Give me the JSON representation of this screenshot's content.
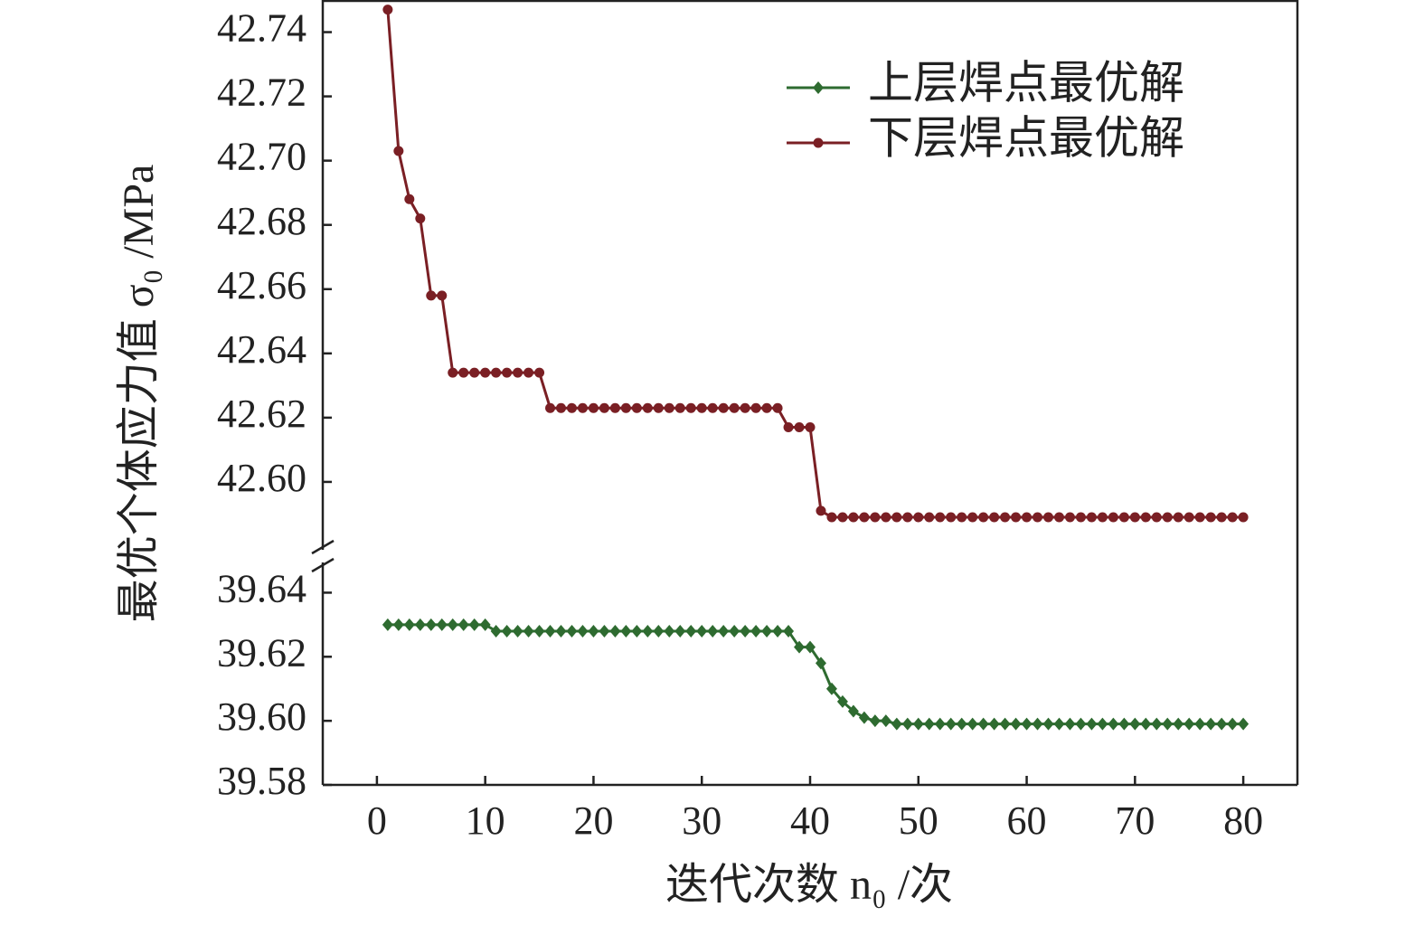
{
  "chart_data": {
    "type": "line",
    "y_label": "最优个体应力值 σ₀ /MPa",
    "x_label": "迭代次数 n₀ /次",
    "x": [
      1,
      2,
      3,
      4,
      5,
      6,
      7,
      8,
      9,
      10,
      11,
      12,
      13,
      14,
      15,
      16,
      17,
      18,
      19,
      20,
      21,
      22,
      23,
      24,
      25,
      26,
      27,
      28,
      29,
      30,
      31,
      32,
      33,
      34,
      35,
      36,
      37,
      38,
      39,
      40,
      41,
      42,
      43,
      44,
      45,
      46,
      47,
      48,
      49,
      50,
      51,
      52,
      53,
      54,
      55,
      56,
      57,
      58,
      59,
      60,
      61,
      62,
      63,
      64,
      65,
      66,
      67,
      68,
      69,
      70,
      71,
      72,
      73,
      74,
      75,
      76,
      77,
      78,
      79,
      80
    ],
    "series": [
      {
        "name": "上层焊点最优解",
        "color": "#2e6b30",
        "marker": "diamond",
        "values": [
          39.63,
          39.63,
          39.63,
          39.63,
          39.63,
          39.63,
          39.63,
          39.63,
          39.63,
          39.63,
          39.628,
          39.628,
          39.628,
          39.628,
          39.628,
          39.628,
          39.628,
          39.628,
          39.628,
          39.628,
          39.628,
          39.628,
          39.628,
          39.628,
          39.628,
          39.628,
          39.628,
          39.628,
          39.628,
          39.628,
          39.628,
          39.628,
          39.628,
          39.628,
          39.628,
          39.628,
          39.628,
          39.628,
          39.623,
          39.623,
          39.618,
          39.61,
          39.606,
          39.603,
          39.601,
          39.6,
          39.6,
          39.599,
          39.599,
          39.599,
          39.599,
          39.599,
          39.599,
          39.599,
          39.599,
          39.599,
          39.599,
          39.599,
          39.599,
          39.599,
          39.599,
          39.599,
          39.599,
          39.599,
          39.599,
          39.599,
          39.599,
          39.599,
          39.599,
          39.599,
          39.599,
          39.599,
          39.599,
          39.599,
          39.599,
          39.599,
          39.599,
          39.599,
          39.599,
          39.599
        ]
      },
      {
        "name": "下层焊点最优解",
        "color": "#7a1f24",
        "marker": "circle",
        "values": [
          42.747,
          42.703,
          42.688,
          42.682,
          42.658,
          42.658,
          42.634,
          42.634,
          42.634,
          42.634,
          42.634,
          42.634,
          42.634,
          42.634,
          42.634,
          42.623,
          42.623,
          42.623,
          42.623,
          42.623,
          42.623,
          42.623,
          42.623,
          42.623,
          42.623,
          42.623,
          42.623,
          42.623,
          42.623,
          42.623,
          42.623,
          42.623,
          42.623,
          42.623,
          42.623,
          42.623,
          42.623,
          42.617,
          42.617,
          42.617,
          42.591,
          42.589,
          42.589,
          42.589,
          42.589,
          42.589,
          42.589,
          42.589,
          42.589,
          42.589,
          42.589,
          42.589,
          42.589,
          42.589,
          42.589,
          42.589,
          42.589,
          42.589,
          42.589,
          42.589,
          42.589,
          42.589,
          42.589,
          42.589,
          42.589,
          42.589,
          42.589,
          42.589,
          42.589,
          42.589,
          42.589,
          42.589,
          42.589,
          42.589,
          42.589,
          42.589,
          42.589,
          42.589,
          42.589,
          42.589
        ]
      }
    ],
    "xlim": [
      -5,
      85
    ],
    "xticks": [
      0,
      10,
      20,
      30,
      40,
      50,
      60,
      70,
      80
    ],
    "y_break": true,
    "ylim": [
      [
        39.58,
        39.65
      ],
      [
        42.58,
        42.75
      ]
    ],
    "yticks": [
      [
        39.58,
        {
          "value": 39.6,
          "label": "39.60"
        },
        39.62,
        39.64
      ],
      [
        {
          "value": 42.6,
          "label": "42.60"
        },
        42.62,
        42.64,
        42.66,
        42.68,
        {
          "value": 42.7,
          "label": "42.70"
        },
        42.72,
        42.74
      ]
    ],
    "legend": "upper-right"
  }
}
